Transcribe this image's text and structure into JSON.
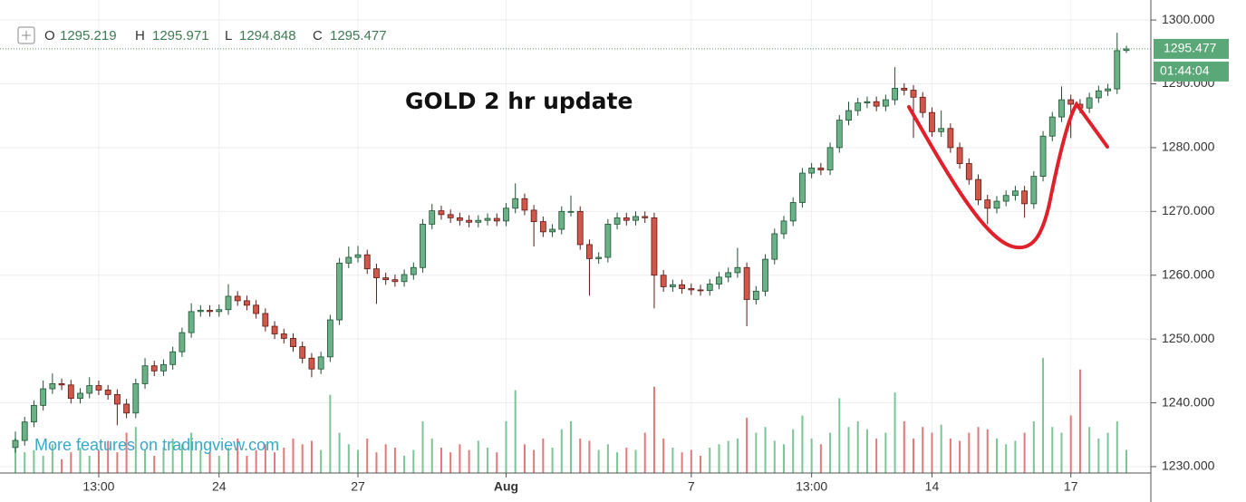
{
  "chart_data": {
    "type": "candlestick",
    "title": "GOLD 2 hr update",
    "watermark": "More features on tradingview.com",
    "header_labels": [
      "O",
      "H",
      "L",
      "C"
    ],
    "countdown": "01:44:04",
    "up_color": "#6bb187",
    "up_border": "#1f5233",
    "down_color": "#d1574a",
    "down_border": "#5a1a14",
    "volume_up_color": "#7cc596",
    "volume_down_color": "#e07a7a",
    "grid": true,
    "ylim": [
      1229,
      1302
    ],
    "yticks": [
      {
        "value": 1230,
        "label": "1230.000"
      },
      {
        "value": 1240,
        "label": "1240.000"
      },
      {
        "value": 1250,
        "label": "1250.000"
      },
      {
        "value": 1260,
        "label": "1260.000"
      },
      {
        "value": 1270,
        "label": "1270.000"
      },
      {
        "value": 1280,
        "label": "1280.000"
      },
      {
        "value": 1290,
        "label": "1290.000"
      },
      {
        "value": 1300,
        "label": "1300.000"
      }
    ],
    "categories": [
      null,
      null,
      null,
      null,
      null,
      null,
      null,
      null,
      null,
      "13:00",
      null,
      null,
      null,
      null,
      null,
      null,
      null,
      null,
      null,
      null,
      null,
      null,
      "24",
      null,
      null,
      null,
      null,
      null,
      null,
      null,
      null,
      null,
      null,
      null,
      null,
      null,
      null,
      "27",
      null,
      null,
      null,
      null,
      null,
      null,
      null,
      null,
      null,
      null,
      null,
      null,
      null,
      null,
      null,
      "Aug",
      null,
      null,
      null,
      null,
      null,
      null,
      null,
      null,
      null,
      null,
      null,
      null,
      null,
      null,
      null,
      null,
      null,
      null,
      null,
      "7",
      null,
      null,
      null,
      null,
      null,
      null,
      null,
      null,
      null,
      null,
      null,
      null,
      "13:00",
      null,
      null,
      null,
      null,
      null,
      null,
      null,
      null,
      null,
      null,
      null,
      null,
      "14",
      null,
      null,
      null,
      null,
      null,
      null,
      null,
      null,
      null,
      null,
      null,
      null,
      null,
      null,
      "17",
      null,
      null,
      null,
      null,
      null,
      null
    ],
    "open": [
      1233.0,
      1234.1,
      1237.0,
      1239.6,
      1242.2,
      1243.0,
      1242.8,
      1240.7,
      1241.5,
      1242.7,
      1242.0,
      1241.3,
      1239.8,
      1238.4,
      1243.0,
      1245.8,
      1245.0,
      1246.0,
      1248.0,
      1251.0,
      1254.3,
      1254.5,
      1254.3,
      1254.6,
      1256.7,
      1256.0,
      1255.3,
      1254.0,
      1252.0,
      1250.8,
      1250.1,
      1248.8,
      1247.0,
      1245.3,
      1247.2,
      1253.0,
      1261.9,
      1262.8,
      1263.2,
      1261.0,
      1259.6,
      1259.3,
      1259.0,
      1260.1,
      1261.2,
      1268.0,
      1270.1,
      1269.5,
      1269.0,
      1268.6,
      1268.3,
      1268.6,
      1268.9,
      1268.5,
      1270.5,
      1272.0,
      1270.2,
      1268.4,
      1266.8,
      1267.2,
      1270.0,
      1270.0,
      1264.8,
      1262.6,
      1262.8,
      1268.0,
      1269.0,
      1268.6,
      1269.2,
      1269.0,
      1260.0,
      1258.2,
      1258.5,
      1257.9,
      1257.7,
      1257.6,
      1258.6,
      1259.7,
      1260.4,
      1261.2,
      1256.2,
      1257.5,
      1262.5,
      1266.5,
      1268.5,
      1271.4,
      1276.0,
      1276.8,
      1276.5,
      1280.0,
      1284.3,
      1285.8,
      1287.0,
      1287.2,
      1286.5,
      1287.5,
      1289.3,
      1289.0,
      1287.9,
      1285.5,
      1282.5,
      1283.0,
      1280.0,
      1277.5,
      1275.0,
      1271.8,
      1270.5,
      1271.6,
      1272.5,
      1273.2,
      1271.2,
      1275.5,
      1281.8,
      1284.8,
      1287.5,
      1286.8,
      1286.2,
      1287.8,
      1288.9,
      1289.2,
      1295.219
    ],
    "high": [
      1235.5,
      1237.8,
      1240.4,
      1243.5,
      1244.6,
      1243.8,
      1243.6,
      1242.3,
      1244.0,
      1243.5,
      1242.8,
      1242.1,
      1240.6,
      1243.8,
      1247.0,
      1246.6,
      1246.8,
      1248.8,
      1251.8,
      1255.6,
      1255.3,
      1255.3,
      1255.4,
      1258.6,
      1257.5,
      1256.8,
      1256.1,
      1254.8,
      1252.8,
      1251.6,
      1250.9,
      1249.6,
      1247.8,
      1248.0,
      1253.8,
      1262.7,
      1264.5,
      1264.6,
      1264.0,
      1261.8,
      1260.4,
      1260.1,
      1260.9,
      1262.0,
      1268.8,
      1271.2,
      1270.9,
      1270.3,
      1269.8,
      1269.4,
      1269.4,
      1269.7,
      1269.7,
      1271.3,
      1274.4,
      1272.8,
      1271.0,
      1269.2,
      1268.0,
      1270.8,
      1272.5,
      1270.8,
      1265.6,
      1263.6,
      1268.8,
      1269.8,
      1269.8,
      1270.0,
      1270.0,
      1269.8,
      1260.8,
      1259.3,
      1259.3,
      1258.7,
      1258.5,
      1259.4,
      1260.5,
      1261.2,
      1264.3,
      1262.0,
      1258.3,
      1263.3,
      1267.3,
      1269.3,
      1272.2,
      1276.8,
      1277.6,
      1277.6,
      1280.8,
      1285.1,
      1287.2,
      1287.8,
      1288.0,
      1288.0,
      1288.3,
      1292.6,
      1290.1,
      1289.8,
      1288.7,
      1286.3,
      1285.8,
      1283.8,
      1280.8,
      1278.3,
      1275.8,
      1272.6,
      1272.4,
      1273.3,
      1274.0,
      1274.0,
      1276.3,
      1282.6,
      1285.6,
      1289.6,
      1288.3,
      1287.6,
      1288.6,
      1289.7,
      1290.0,
      1298.0,
      1295.971
    ],
    "low": [
      1232.2,
      1233.3,
      1236.2,
      1238.8,
      1241.4,
      1242.0,
      1239.9,
      1239.9,
      1240.7,
      1241.2,
      1240.5,
      1236.5,
      1237.6,
      1237.6,
      1242.2,
      1244.2,
      1244.2,
      1245.2,
      1247.2,
      1250.2,
      1253.5,
      1253.5,
      1253.5,
      1253.8,
      1255.2,
      1254.5,
      1253.2,
      1251.2,
      1250.0,
      1249.3,
      1248.0,
      1246.2,
      1244.0,
      1244.5,
      1246.4,
      1252.2,
      1261.1,
      1262.0,
      1260.2,
      1255.5,
      1258.5,
      1258.2,
      1258.2,
      1259.3,
      1260.4,
      1267.2,
      1268.7,
      1268.2,
      1267.8,
      1267.5,
      1267.5,
      1267.8,
      1267.7,
      1267.7,
      1269.7,
      1269.4,
      1264.5,
      1266.0,
      1266.0,
      1266.4,
      1269.2,
      1264.0,
      1256.8,
      1261.8,
      1262.0,
      1267.2,
      1267.8,
      1267.8,
      1268.2,
      1254.8,
      1257.4,
      1257.4,
      1257.1,
      1256.9,
      1256.8,
      1256.8,
      1257.8,
      1258.9,
      1259.6,
      1252.0,
      1255.4,
      1256.7,
      1261.7,
      1265.7,
      1267.7,
      1270.6,
      1275.2,
      1275.7,
      1275.7,
      1279.2,
      1283.5,
      1285.0,
      1286.2,
      1285.7,
      1285.7,
      1286.7,
      1288.2,
      1281.5,
      1284.7,
      1281.7,
      1281.7,
      1279.2,
      1276.7,
      1274.2,
      1271.0,
      1268.0,
      1269.7,
      1270.8,
      1271.7,
      1269.0,
      1270.4,
      1274.7,
      1281.0,
      1284.0,
      1281.5,
      1285.4,
      1285.4,
      1287.0,
      1288.1,
      1288.4,
      1294.848
    ],
    "close": [
      1234.1,
      1237.0,
      1239.6,
      1242.2,
      1243.0,
      1242.8,
      1240.7,
      1241.5,
      1242.7,
      1242.0,
      1241.3,
      1239.8,
      1238.4,
      1243.0,
      1245.8,
      1245.0,
      1246.0,
      1248.0,
      1251.0,
      1254.3,
      1254.5,
      1254.3,
      1254.6,
      1256.7,
      1256.0,
      1255.3,
      1254.0,
      1252.0,
      1250.8,
      1250.1,
      1248.8,
      1247.0,
      1245.3,
      1247.2,
      1253.0,
      1261.9,
      1262.8,
      1263.2,
      1261.0,
      1259.6,
      1259.3,
      1259.0,
      1260.1,
      1261.2,
      1268.0,
      1270.1,
      1269.5,
      1269.0,
      1268.6,
      1268.3,
      1268.6,
      1268.9,
      1268.5,
      1270.5,
      1272.0,
      1270.2,
      1268.4,
      1266.8,
      1267.2,
      1270.0,
      1270.0,
      1264.8,
      1262.6,
      1262.8,
      1268.0,
      1269.0,
      1268.6,
      1269.2,
      1269.0,
      1260.0,
      1258.2,
      1258.5,
      1257.9,
      1257.7,
      1257.6,
      1258.6,
      1259.7,
      1260.4,
      1261.2,
      1256.2,
      1257.5,
      1262.5,
      1266.5,
      1268.5,
      1271.4,
      1276.0,
      1276.8,
      1276.5,
      1280.0,
      1284.3,
      1285.8,
      1287.0,
      1287.2,
      1286.5,
      1287.5,
      1289.3,
      1289.0,
      1287.9,
      1285.5,
      1282.5,
      1283.0,
      1280.0,
      1277.5,
      1275.0,
      1271.8,
      1270.5,
      1271.6,
      1272.5,
      1273.2,
      1271.2,
      1275.5,
      1281.8,
      1284.8,
      1287.5,
      1286.8,
      1286.2,
      1287.8,
      1288.9,
      1289.2,
      1295.2,
      1295.477
    ],
    "volume": [
      30,
      18,
      20,
      15,
      25,
      12,
      18,
      22,
      15,
      20,
      28,
      18,
      35,
      40,
      20,
      15,
      22,
      30,
      25,
      35,
      20,
      18,
      15,
      22,
      30,
      15,
      20,
      25,
      18,
      22,
      30,
      25,
      28,
      20,
      68,
      35,
      25,
      20,
      30,
      18,
      25,
      22,
      15,
      20,
      45,
      30,
      22,
      18,
      25,
      20,
      28,
      22,
      18,
      45,
      72,
      25,
      20,
      30,
      22,
      38,
      45,
      30,
      28,
      20,
      25,
      18,
      22,
      20,
      35,
      75,
      30,
      22,
      18,
      20,
      15,
      22,
      25,
      28,
      30,
      48,
      35,
      40,
      28,
      25,
      38,
      50,
      30,
      25,
      35,
      65,
      40,
      45,
      38,
      30,
      35,
      70,
      45,
      30,
      40,
      35,
      42,
      30,
      28,
      35,
      40,
      38,
      30,
      25,
      28,
      35,
      45,
      100,
      40,
      35,
      50,
      90,
      40,
      30,
      35,
      45,
      20
    ]
  }
}
